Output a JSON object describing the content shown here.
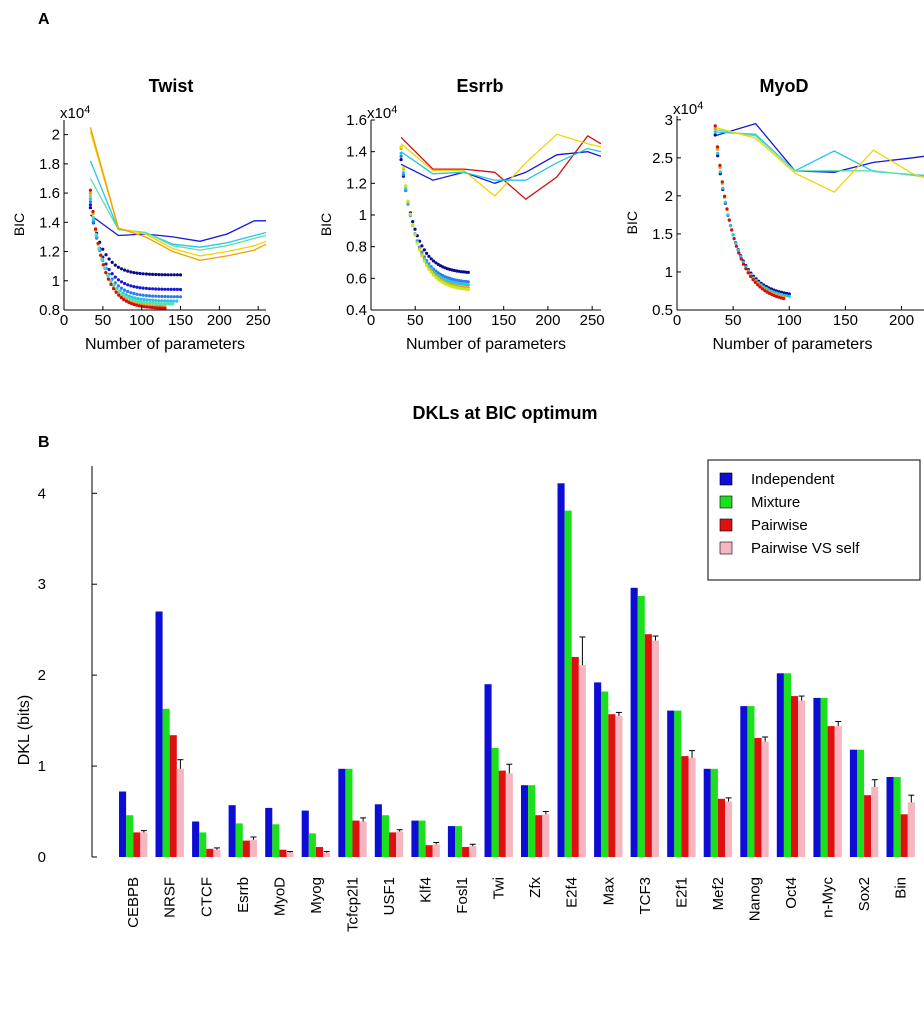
{
  "panel_labels": {
    "a": "A",
    "b": "B"
  },
  "colors": {
    "independent": "#0d0dd6",
    "mixture": "#1de01d",
    "pairwise": "#e01010",
    "pairwise_vs_self": "#f6b6c1",
    "curve_palette": [
      "#0a0a8c",
      "#1717d9",
      "#2a7df0",
      "#29c4e8",
      "#56e0b0",
      "#c8e820",
      "#f2d400",
      "#f2a000",
      "#e04a10",
      "#d01010"
    ]
  },
  "chart_data": [
    {
      "type": "line",
      "title": "Twist",
      "xlabel": "Number of parameters",
      "ylabel": "BIC",
      "y_exponent_label": "x10",
      "y_exponent_power": "4",
      "xlim": [
        0,
        260
      ],
      "ylim": [
        0.8,
        2.1
      ],
      "xticks": [
        0,
        50,
        100,
        150,
        200,
        250
      ],
      "xtick_labels": [
        "0",
        "50",
        "100",
        "150",
        "200",
        "250"
      ],
      "yticks": [
        0.8,
        1,
        1.2,
        1.4,
        1.6,
        1.8,
        2
      ],
      "ytick_labels": [
        "0.8",
        "1",
        "1.2",
        "1.4",
        "1.6",
        "1.8",
        "2"
      ],
      "series": [
        {
          "style": "line",
          "color": "#1717d9",
          "x": [
            34,
            70,
            105,
            140,
            175,
            210,
            245,
            260
          ],
          "y": [
            1.45,
            1.31,
            1.32,
            1.3,
            1.27,
            1.32,
            1.41,
            1.41
          ]
        },
        {
          "style": "line",
          "color": "#29c4e8",
          "x": [
            34,
            70,
            105,
            140,
            175,
            210,
            245,
            260
          ],
          "y": [
            1.82,
            1.35,
            1.33,
            1.25,
            1.23,
            1.26,
            1.31,
            1.33
          ]
        },
        {
          "style": "line",
          "color": "#56e0b0",
          "x": [
            34,
            70,
            105,
            140,
            175,
            210,
            245,
            260
          ],
          "y": [
            1.7,
            1.35,
            1.33,
            1.24,
            1.21,
            1.24,
            1.29,
            1.31
          ]
        },
        {
          "style": "line",
          "color": "#f2d400",
          "x": [
            34,
            70,
            105,
            140,
            175,
            210,
            245,
            260
          ],
          "y": [
            2.02,
            1.36,
            1.32,
            1.22,
            1.17,
            1.2,
            1.24,
            1.27
          ]
        },
        {
          "style": "line",
          "color": "#f2a000",
          "x": [
            34,
            70,
            105,
            140,
            175,
            210,
            245,
            260
          ],
          "y": [
            2.05,
            1.36,
            1.3,
            1.2,
            1.14,
            1.17,
            1.21,
            1.25
          ]
        },
        {
          "style": "points",
          "color": "#0a0a8c",
          "x_start": 34,
          "x_end": 150,
          "y_start": 1.5,
          "y_end": 1.04
        },
        {
          "style": "points",
          "color": "#1717d9",
          "x_start": 34,
          "x_end": 150,
          "y_start": 1.52,
          "y_end": 0.94
        },
        {
          "style": "points",
          "color": "#2a7df0",
          "x_start": 34,
          "x_end": 150,
          "y_start": 1.54,
          "y_end": 0.89
        },
        {
          "style": "points",
          "color": "#29c4e8",
          "x_start": 34,
          "x_end": 145,
          "y_start": 1.56,
          "y_end": 0.86
        },
        {
          "style": "points",
          "color": "#56e0b0",
          "x_start": 34,
          "x_end": 140,
          "y_start": 1.58,
          "y_end": 0.84
        },
        {
          "style": "points",
          "color": "#f2a000",
          "x_start": 34,
          "x_end": 130,
          "y_start": 1.6,
          "y_end": 0.82
        },
        {
          "style": "points",
          "color": "#d01010",
          "x_start": 34,
          "x_end": 130,
          "y_start": 1.62,
          "y_end": 0.81
        }
      ]
    },
    {
      "type": "line",
      "title": "Esrrb",
      "xlabel": "Number of parameters",
      "ylabel": "BIC",
      "y_exponent_label": "x10",
      "y_exponent_power": "4",
      "xlim": [
        0,
        260
      ],
      "ylim": [
        0.4,
        1.6
      ],
      "xticks": [
        0,
        50,
        100,
        150,
        200,
        250
      ],
      "xtick_labels": [
        "0",
        "50",
        "100",
        "150",
        "200",
        "250"
      ],
      "yticks": [
        0.4,
        0.6,
        0.8,
        1,
        1.2,
        1.4,
        1.6
      ],
      "ytick_labels": [
        "0.4",
        "0.6",
        "0.8",
        "1",
        "1.2",
        "1.4",
        "1.6"
      ],
      "series": [
        {
          "style": "line",
          "color": "#1717d9",
          "x": [
            34,
            70,
            105,
            140,
            175,
            210,
            245,
            260
          ],
          "y": [
            1.32,
            1.22,
            1.27,
            1.2,
            1.27,
            1.38,
            1.4,
            1.37
          ]
        },
        {
          "style": "line",
          "color": "#d01010",
          "x": [
            34,
            70,
            105,
            140,
            175,
            210,
            245,
            260
          ],
          "y": [
            1.49,
            1.29,
            1.29,
            1.27,
            1.1,
            1.24,
            1.5,
            1.45
          ]
        },
        {
          "style": "line",
          "color": "#f2d400",
          "x": [
            34,
            70,
            105,
            140,
            175,
            210,
            245,
            260
          ],
          "y": [
            1.45,
            1.28,
            1.28,
            1.12,
            1.33,
            1.51,
            1.45,
            1.43
          ]
        },
        {
          "style": "line",
          "color": "#29c4e8",
          "x": [
            34,
            70,
            105,
            140,
            175,
            210,
            245,
            260
          ],
          "y": [
            1.4,
            1.26,
            1.27,
            1.22,
            1.22,
            1.33,
            1.42,
            1.4
          ]
        },
        {
          "style": "points",
          "color": "#0a0a8c",
          "x_start": 34,
          "x_end": 110,
          "y_start": 1.35,
          "y_end": 0.63
        },
        {
          "style": "points",
          "color": "#2a7df0",
          "x_start": 34,
          "x_end": 110,
          "y_start": 1.37,
          "y_end": 0.57
        },
        {
          "style": "points",
          "color": "#29c4e8",
          "x_start": 34,
          "x_end": 110,
          "y_start": 1.39,
          "y_end": 0.55
        },
        {
          "style": "points",
          "color": "#f2a000",
          "x_start": 34,
          "x_end": 110,
          "y_start": 1.42,
          "y_end": 0.53
        },
        {
          "style": "points",
          "color": "#c8e820",
          "x_start": 34,
          "x_end": 110,
          "y_start": 1.43,
          "y_end": 0.52
        }
      ]
    },
    {
      "type": "line",
      "title": "MyoD",
      "xlabel": "Number of parameters",
      "ylabel": "BIC",
      "y_exponent_label": "x10",
      "y_exponent_power": "4",
      "xlim": [
        0,
        220
      ],
      "ylim": [
        0.5,
        3.05
      ],
      "xticks": [
        0,
        50,
        100,
        150,
        200
      ],
      "xtick_labels": [
        "0",
        "50",
        "100",
        "150",
        "200"
      ],
      "yticks": [
        0.5,
        1,
        1.5,
        2,
        2.5,
        3
      ],
      "ytick_labels": [
        "0.5",
        "1",
        "1.5",
        "2",
        "2.5",
        "3"
      ],
      "series": [
        {
          "style": "line",
          "color": "#1717d9",
          "x": [
            34,
            70,
            105,
            140,
            175,
            210,
            220
          ],
          "y": [
            2.79,
            2.95,
            2.33,
            2.31,
            2.44,
            2.5,
            2.52
          ]
        },
        {
          "style": "line",
          "color": "#29c4e8",
          "x": [
            34,
            70,
            105,
            140,
            175,
            210,
            220
          ],
          "y": [
            2.84,
            2.81,
            2.33,
            2.59,
            2.32,
            2.28,
            2.27
          ]
        },
        {
          "style": "line",
          "color": "#56e0b0",
          "x": [
            34,
            70,
            105,
            140,
            175,
            210,
            220
          ],
          "y": [
            2.87,
            2.79,
            2.33,
            2.33,
            2.33,
            2.27,
            2.25
          ]
        },
        {
          "style": "line",
          "color": "#f2d400",
          "x": [
            34,
            70,
            105,
            140,
            175,
            210,
            220
          ],
          "y": [
            2.9,
            2.76,
            2.3,
            2.05,
            2.6,
            2.29,
            2.24
          ]
        },
        {
          "style": "points",
          "color": "#0a0a8c",
          "x_start": 34,
          "x_end": 100,
          "y_start": 2.8,
          "y_end": 0.67
        },
        {
          "style": "points",
          "color": "#29c4e8",
          "x_start": 34,
          "x_end": 100,
          "y_start": 2.84,
          "y_end": 0.64
        },
        {
          "style": "points",
          "color": "#f2a000",
          "x_start": 34,
          "x_end": 95,
          "y_start": 2.88,
          "y_end": 0.61
        },
        {
          "style": "points",
          "color": "#d01010",
          "x_start": 34,
          "x_end": 95,
          "y_start": 2.92,
          "y_end": 0.59
        }
      ]
    },
    {
      "type": "bar",
      "title": "DKLs at BIC optimum",
      "xlabel": "",
      "ylabel": "DKL (bits)",
      "ylim": [
        0,
        4.3
      ],
      "yticks": [
        0,
        1,
        2,
        3,
        4
      ],
      "ytick_labels": [
        "0",
        "1",
        "2",
        "3",
        "4"
      ],
      "categories": [
        "CEBPB",
        "NRSF",
        "CTCF",
        "Esrrb",
        "MyoD",
        "Myog",
        "Tcfcp2l1",
        "USF1",
        "Klf4",
        "Fosl1",
        "Twi",
        "Zfx",
        "E2f4",
        "Max",
        "TCF3",
        "E2f1",
        "Mef2",
        "Nanog",
        "Oct4",
        "n-Myc",
        "Sox2",
        "Bin"
      ],
      "legend_position": "top-right",
      "series": [
        {
          "name": "Independent",
          "color_key": "independent",
          "values": [
            0.72,
            2.7,
            0.39,
            0.57,
            0.54,
            0.51,
            0.97,
            0.58,
            0.4,
            0.34,
            1.9,
            0.79,
            4.11,
            1.92,
            2.96,
            1.61,
            0.97,
            1.66,
            2.02,
            1.75,
            1.18,
            0.88
          ]
        },
        {
          "name": "Mixture",
          "color_key": "mixture",
          "values": [
            0.46,
            1.63,
            0.27,
            0.37,
            0.36,
            0.26,
            0.97,
            0.46,
            0.4,
            0.34,
            1.2,
            0.79,
            3.81,
            1.82,
            2.87,
            1.61,
            0.97,
            1.66,
            2.02,
            1.75,
            1.18,
            0.88
          ]
        },
        {
          "name": "Pairwise",
          "color_key": "pairwise",
          "values": [
            0.27,
            1.34,
            0.09,
            0.18,
            0.08,
            0.11,
            0.4,
            0.27,
            0.13,
            0.11,
            0.95,
            0.46,
            2.2,
            1.57,
            2.45,
            1.11,
            0.64,
            1.31,
            1.77,
            1.44,
            0.68,
            0.47
          ]
        },
        {
          "name": "Pairwise VS self",
          "color_key": "pairwise_vs_self",
          "values": [
            0.27,
            0.97,
            0.08,
            0.19,
            0.05,
            0.05,
            0.39,
            0.28,
            0.14,
            0.12,
            0.92,
            0.47,
            2.11,
            1.55,
            2.38,
            1.09,
            0.61,
            1.27,
            1.72,
            1.44,
            0.77,
            0.6
          ],
          "error": [
            0.02,
            0.1,
            0.02,
            0.03,
            0.01,
            0.01,
            0.04,
            0.02,
            0.02,
            0.02,
            0.1,
            0.03,
            0.31,
            0.04,
            0.05,
            0.08,
            0.04,
            0.05,
            0.05,
            0.05,
            0.08,
            0.08
          ]
        }
      ]
    }
  ]
}
